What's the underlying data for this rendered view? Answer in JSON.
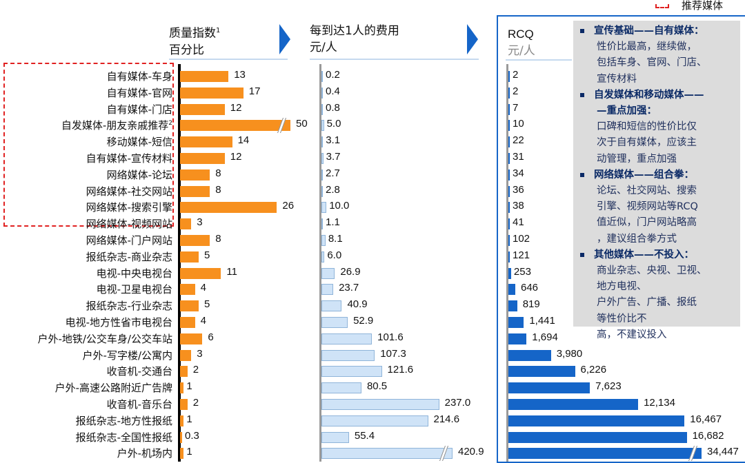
{
  "legend": {
    "label": "推荐媒体",
    "color": "#e02020"
  },
  "colors": {
    "quality": "#f7901e",
    "cost": "#cfe3f7",
    "cost_border": "#8fb4d9",
    "rcq": "#1565c8"
  },
  "chart_data": [
    {
      "type": "bar",
      "orientation": "horizontal",
      "title": "质量指数",
      "title_sup": "1",
      "unit": "百分比",
      "categories": [
        "自有媒体-车身",
        "自有媒体-官网",
        "自有媒体-门店",
        "自发媒体-朋友亲戚推荐",
        "移动媒体-短信",
        "自有媒体-宣传材料",
        "网络媒体-论坛",
        "网络媒体-社交网站",
        "网络媒体-搜索引擎",
        "网络媒体-视频网站",
        "网络媒体-门户网站",
        "报纸杂志-商业杂志",
        "电视-中央电视台",
        "电视-卫星电视台",
        "报纸杂志-行业杂志",
        "电视-地方性省市电视台",
        "户外-地铁/公交车身/公交车站",
        "户外-写字楼/公寓内",
        "收音机-交通台",
        "户外-高速公路附近广告牌",
        "收音机-音乐台",
        "报纸杂志-地方性报纸",
        "报纸杂志-全国性报纸",
        "户外-机场内"
      ],
      "category_sups": {
        "3": "2"
      },
      "values": [
        13,
        17,
        12,
        50,
        14,
        12,
        8,
        8,
        26,
        3,
        8,
        5,
        11,
        4,
        5,
        4,
        6,
        3,
        2,
        1,
        2,
        1,
        0.3,
        1
      ],
      "labels": [
        "13",
        "17",
        "12",
        "50",
        "14",
        "12",
        "8",
        "8",
        "26",
        "3",
        "8",
        "5",
        "11",
        "4",
        "5",
        "4",
        "6",
        "3",
        "2",
        "1",
        "2",
        "1",
        "0.3",
        "1"
      ],
      "broken_axis_values": [
        50
      ]
    },
    {
      "type": "bar",
      "orientation": "horizontal",
      "title": "每到达1人的费用",
      "unit": "元/人",
      "values": [
        0.2,
        0.4,
        0.8,
        5.0,
        3.1,
        3.7,
        2.7,
        2.8,
        10.0,
        1.1,
        8.1,
        6.0,
        26.9,
        23.7,
        40.9,
        52.9,
        101.6,
        107.3,
        121.6,
        80.5,
        237.0,
        214.6,
        55.4,
        420.9
      ],
      "labels": [
        "0.2",
        "0.4",
        "0.8",
        "5.0",
        "3.1",
        "3.7",
        "2.7",
        "2.8",
        "10.0",
        "1.1",
        "8.1",
        "6.0",
        "26.9",
        "23.7",
        "40.9",
        "52.9",
        "101.6",
        "107.3",
        "121.6",
        "80.5",
        "237.0",
        "214.6",
        "55.4",
        "420.9"
      ],
      "broken_axis_values": [
        420.9
      ]
    },
    {
      "type": "bar",
      "orientation": "horizontal",
      "title": "RCQ",
      "unit": "元/人",
      "values": [
        2,
        2,
        7,
        10,
        22,
        31,
        34,
        36,
        38,
        41,
        102,
        121,
        253,
        646,
        819,
        1441,
        1694,
        3980,
        6226,
        7623,
        12134,
        16467,
        16682,
        34447
      ],
      "labels": [
        "2",
        "2",
        "7",
        "10",
        "22",
        "31",
        "34",
        "36",
        "38",
        "41",
        "102",
        "121",
        "253",
        "646",
        "819",
        "1,441",
        "1,694",
        "3,980",
        "6,226",
        "7,623",
        "12,134",
        "16,467",
        "16,682",
        "34,447"
      ],
      "broken_axis_values": [
        34447
      ]
    }
  ],
  "notes": [
    {
      "heading": "宣传基础——自有媒体：",
      "lines": [
        "性价比最高，继续做，",
        "包括车身、官网、门店、",
        "宣传材料"
      ]
    },
    {
      "heading": "自发媒体和移动媒体——",
      "heading2": "—重点加强：",
      "lines": [
        "口碑和短信的性价比仅",
        "次于自有媒体，应该主",
        "动管理，重点加强"
      ]
    },
    {
      "heading": "网络媒体——组合拳：",
      "lines": [
        "论坛、社交网站、搜索",
        "引擎、视频网站等RCQ",
        "值近似，门户网站略高",
        "，建议组合拳方式"
      ]
    },
    {
      "heading": "其他媒体——不投入：",
      "lines": [
        "商业杂志、央视、卫视、",
        "地方电视、",
        "户外广告、广播、报纸",
        "等性价比不",
        "高，不建议投入"
      ]
    }
  ]
}
